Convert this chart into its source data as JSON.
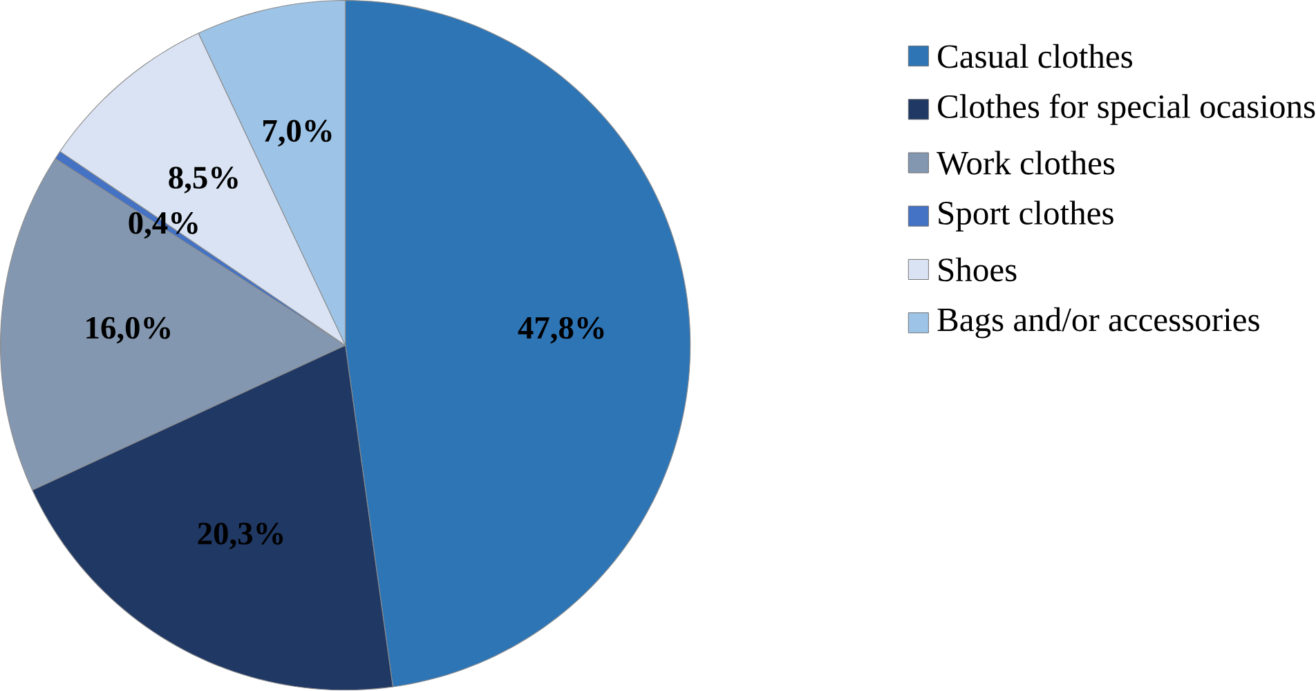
{
  "chart_data": {
    "type": "pie",
    "categories": [
      "Casual clothes",
      "Clothes for special ocasions",
      "Work clothes",
      "Sport clothes",
      "Shoes",
      "Bags and/or accessories"
    ],
    "values": [
      47.8,
      20.3,
      16.0,
      0.4,
      8.5,
      7.0
    ],
    "colors": [
      "#2e75b6",
      "#203864",
      "#8497b0",
      "#4472c4",
      "#dae3f3",
      "#9dc3e6"
    ],
    "value_labels": [
      "47,8%",
      "20,3%",
      "16,0%",
      "0,4%",
      "8,5%",
      "7,0%"
    ],
    "legend": "right"
  }
}
